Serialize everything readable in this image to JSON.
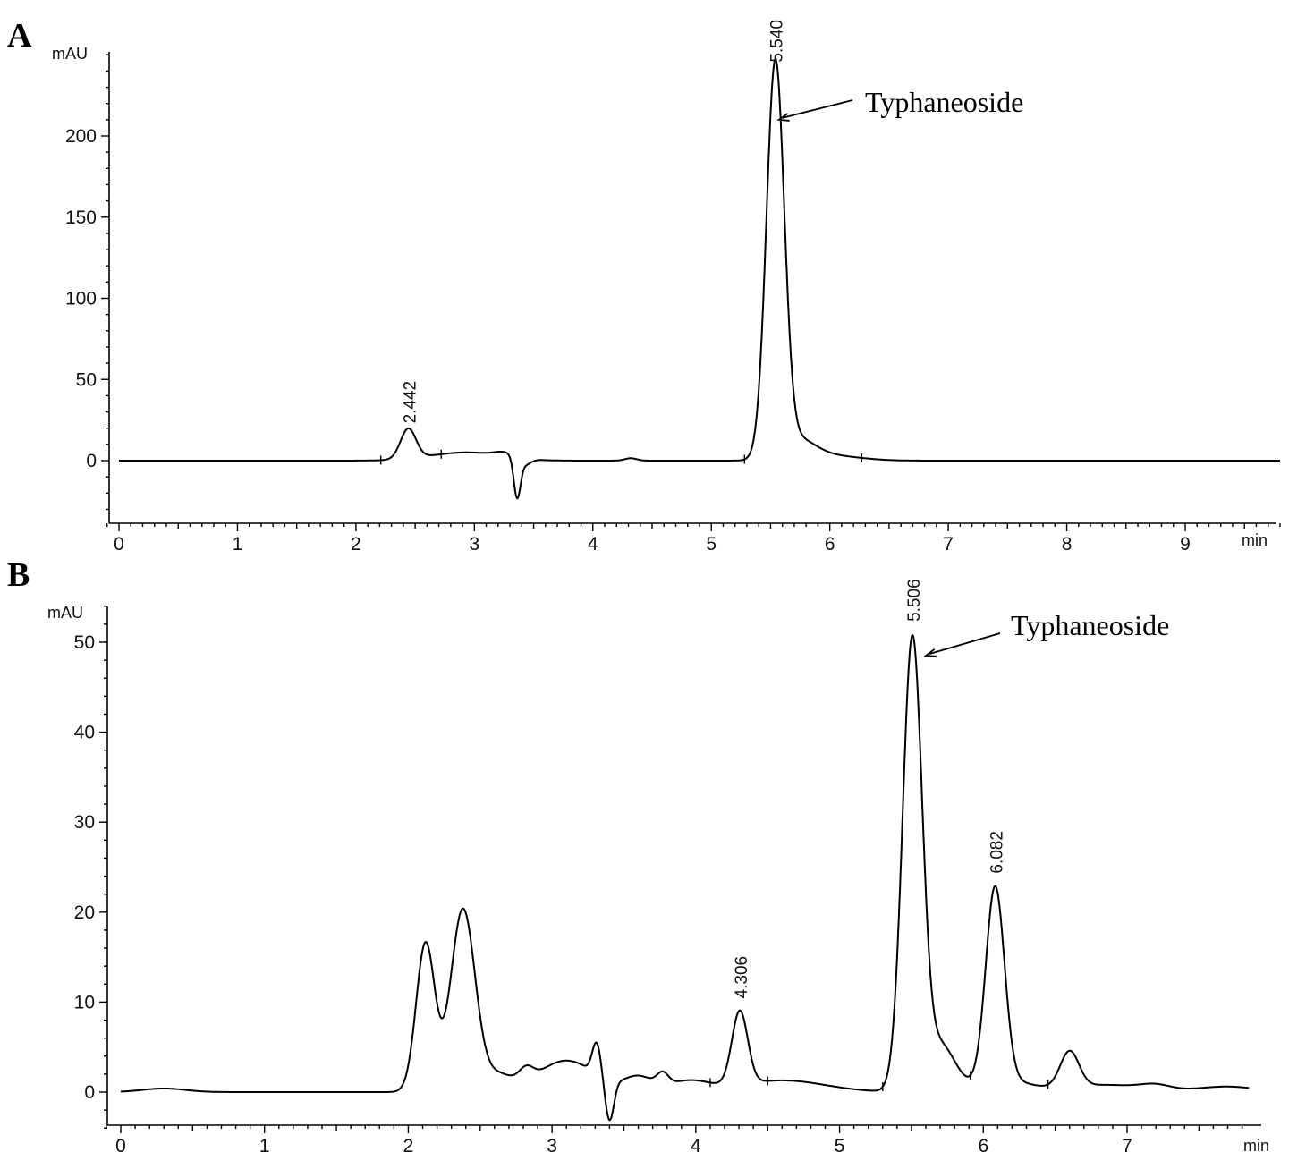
{
  "chart_data": [
    {
      "id": "A",
      "type": "line",
      "panel_label": "A",
      "xlabel": "min",
      "ylabel": "mAU",
      "xlim": [
        -0.1,
        9.8
      ],
      "ylim": [
        -38,
        252
      ],
      "xticks": [
        0,
        1,
        2,
        3,
        4,
        5,
        6,
        7,
        8,
        9
      ],
      "yticks": [
        0,
        50,
        100,
        150,
        200
      ],
      "baseline_segment": [
        -0.1,
        9.8
      ],
      "series": [
        {
          "peaks": [
            {
              "rt": 2.442,
              "height": 18.5,
              "width": 0.065
            },
            {
              "rt": 2.75,
              "height": 2.5,
              "width": 0.25
            },
            {
              "rt": 3.05,
              "height": 3.5,
              "width": 0.25
            },
            {
              "rt": 3.25,
              "height": 2.5,
              "width": 0.08
            },
            {
              "rt": 3.36,
              "height": -24,
              "width": 0.028
            },
            {
              "rt": 3.42,
              "height": -4,
              "width": 0.05
            },
            {
              "rt": 4.32,
              "height": 1.5,
              "width": 0.05
            },
            {
              "rt": 5.54,
              "height": 241,
              "width": 0.075
            },
            {
              "rt": 5.72,
              "height": 12,
              "width": 0.15
            },
            {
              "rt": 6.0,
              "height": 3,
              "width": 0.25
            }
          ]
        }
      ],
      "integration_marks": [
        2.21,
        2.72,
        5.28,
        6.27
      ],
      "peak_labels": [
        {
          "text": "2.442",
          "x": 2.442,
          "y": 18.5
        },
        {
          "text": "5.540",
          "x": 5.54,
          "y": 241
        }
      ],
      "annotations": [
        {
          "text": "Typhaneoside",
          "target_x": 5.57,
          "target_y": 210
        }
      ]
    },
    {
      "id": "B",
      "type": "line",
      "panel_label": "B",
      "xlabel": "min",
      "ylabel": "mAU",
      "xlim": [
        -0.1,
        7.85
      ],
      "ylim": [
        -4,
        54
      ],
      "xticks": [
        0,
        1,
        2,
        3,
        4,
        5,
        6,
        7
      ],
      "yticks": [
        0,
        10,
        20,
        30,
        40,
        50
      ],
      "baseline_segment": [
        -0.1,
        7.85
      ],
      "series": [
        {
          "peaks": [
            {
              "rt": 0.3,
              "height": 0.4,
              "width": 0.15
            },
            {
              "rt": 2.12,
              "height": 16.5,
              "width": 0.065
            },
            {
              "rt": 2.38,
              "height": 20.3,
              "width": 0.085
            },
            {
              "rt": 2.62,
              "height": 1.8,
              "width": 0.1
            },
            {
              "rt": 2.82,
              "height": 1.4,
              "width": 0.05
            },
            {
              "rt": 3.1,
              "height": 3.5,
              "width": 0.2
            },
            {
              "rt": 3.31,
              "height": 3.5,
              "width": 0.03
            },
            {
              "rt": 3.4,
              "height": -4.5,
              "width": 0.03
            },
            {
              "rt": 3.6,
              "height": 1.6,
              "width": 0.1
            },
            {
              "rt": 3.77,
              "height": 1.3,
              "width": 0.04
            },
            {
              "rt": 3.95,
              "height": 1.2,
              "width": 0.15
            },
            {
              "rt": 4.306,
              "height": 8.2,
              "width": 0.055
            },
            {
              "rt": 4.6,
              "height": 1.3,
              "width": 0.3
            },
            {
              "rt": 5.506,
              "height": 50.0,
              "width": 0.068
            },
            {
              "rt": 5.7,
              "height": 5.0,
              "width": 0.1
            },
            {
              "rt": 5.9,
              "height": 0.5,
              "width": 0.15
            },
            {
              "rt": 6.082,
              "height": 21.9,
              "width": 0.065
            },
            {
              "rt": 6.2,
              "height": 1.0,
              "width": 0.15
            },
            {
              "rt": 6.6,
              "height": 4.0,
              "width": 0.065
            },
            {
              "rt": 6.85,
              "height": 0.8,
              "width": 0.3
            },
            {
              "rt": 7.2,
              "height": 0.5,
              "width": 0.1
            },
            {
              "rt": 7.7,
              "height": 0.6,
              "width": 0.2
            }
          ]
        }
      ],
      "integration_marks": [
        4.1,
        4.5,
        5.3,
        5.91,
        6.45
      ],
      "peak_labels": [
        {
          "text": "4.306",
          "x": 4.306,
          "y": 9.6
        },
        {
          "text": "5.506",
          "x": 5.506,
          "y": 51.5
        },
        {
          "text": "6.082",
          "x": 6.082,
          "y": 23.5
        }
      ],
      "annotations": [
        {
          "text": "Typhaneoside",
          "target_x": 5.6,
          "target_y": 48.5
        }
      ]
    }
  ]
}
